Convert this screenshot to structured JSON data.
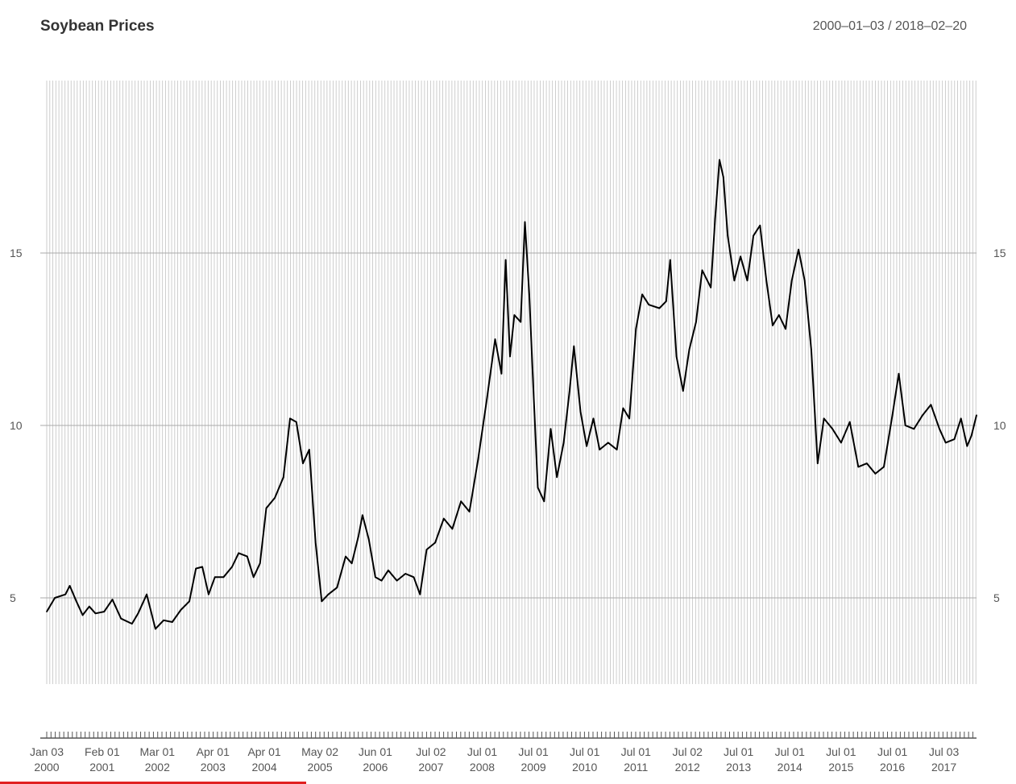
{
  "title": "Soybean Prices",
  "date_range": "2000–01–03 / 2018–02–20",
  "chart_data": {
    "type": "line",
    "title": "Soybean Prices",
    "subtitle": "2000–01–03 / 2018–02–20",
    "xlabel": "",
    "ylabel": "",
    "x_range": [
      "2000-01-03",
      "2018-02-20"
    ],
    "ylim": [
      2.5,
      20
    ],
    "y_ticks": [
      5,
      10,
      15
    ],
    "y_axis_sides": "left and right",
    "grid": "dense vertical, horizontal at y ticks",
    "x_ticks": [
      {
        "date": "2000-01-03",
        "line1": "Jan 03",
        "line2": "2000"
      },
      {
        "date": "2001-02-01",
        "line1": "Feb 01",
        "line2": "2001"
      },
      {
        "date": "2002-03-01",
        "line1": "Mar 01",
        "line2": "2002"
      },
      {
        "date": "2003-04-01",
        "line1": "Apr 01",
        "line2": "2003"
      },
      {
        "date": "2004-04-01",
        "line1": "Apr 01",
        "line2": "2004"
      },
      {
        "date": "2005-05-02",
        "line1": "May 02",
        "line2": "2005"
      },
      {
        "date": "2006-06-01",
        "line1": "Jun 01",
        "line2": "2006"
      },
      {
        "date": "2007-07-02",
        "line1": "Jul 02",
        "line2": "2007"
      },
      {
        "date": "2008-07-01",
        "line1": "Jul 01",
        "line2": "2008"
      },
      {
        "date": "2009-07-01",
        "line1": "Jul 01",
        "line2": "2009"
      },
      {
        "date": "2010-07-01",
        "line1": "Jul 01",
        "line2": "2010"
      },
      {
        "date": "2011-07-01",
        "line1": "Jul 01",
        "line2": "2011"
      },
      {
        "date": "2012-07-02",
        "line1": "Jul 02",
        "line2": "2012"
      },
      {
        "date": "2013-07-01",
        "line1": "Jul 01",
        "line2": "2013"
      },
      {
        "date": "2014-07-01",
        "line1": "Jul 01",
        "line2": "2014"
      },
      {
        "date": "2015-07-01",
        "line1": "Jul 01",
        "line2": "2015"
      },
      {
        "date": "2016-07-01",
        "line1": "Jul 01",
        "line2": "2016"
      },
      {
        "date": "2017-07-03",
        "line1": "Jul 03",
        "line2": "2017"
      }
    ],
    "series": [
      {
        "values": [
          [
            "2000-01-03",
            4.6
          ],
          [
            "2000-03-01",
            5.0
          ],
          [
            "2000-05-15",
            5.1
          ],
          [
            "2000-06-15",
            5.35
          ],
          [
            "2000-08-01",
            4.9
          ],
          [
            "2000-09-15",
            4.5
          ],
          [
            "2000-11-01",
            4.75
          ],
          [
            "2000-12-15",
            4.55
          ],
          [
            "2001-02-15",
            4.6
          ],
          [
            "2001-04-15",
            4.95
          ],
          [
            "2001-06-15",
            4.4
          ],
          [
            "2001-09-01",
            4.25
          ],
          [
            "2001-10-15",
            4.55
          ],
          [
            "2001-12-15",
            5.1
          ],
          [
            "2002-02-15",
            4.1
          ],
          [
            "2002-04-15",
            4.35
          ],
          [
            "2002-06-15",
            4.3
          ],
          [
            "2002-08-15",
            4.65
          ],
          [
            "2002-10-15",
            4.9
          ],
          [
            "2002-12-01",
            5.85
          ],
          [
            "2003-01-15",
            5.9
          ],
          [
            "2003-03-01",
            5.1
          ],
          [
            "2003-04-15",
            5.6
          ],
          [
            "2003-06-15",
            5.6
          ],
          [
            "2003-08-15",
            5.9
          ],
          [
            "2003-10-01",
            6.3
          ],
          [
            "2003-12-01",
            6.2
          ],
          [
            "2004-01-15",
            5.6
          ],
          [
            "2004-03-01",
            6.0
          ],
          [
            "2004-04-15",
            7.6
          ],
          [
            "2004-06-15",
            7.9
          ],
          [
            "2004-08-15",
            8.5
          ],
          [
            "2004-10-01",
            10.2
          ],
          [
            "2004-11-15",
            10.1
          ],
          [
            "2005-01-01",
            8.9
          ],
          [
            "2005-02-15",
            9.3
          ],
          [
            "2005-04-01",
            6.6
          ],
          [
            "2005-05-15",
            4.9
          ],
          [
            "2005-07-01",
            5.1
          ],
          [
            "2005-09-01",
            5.3
          ],
          [
            "2005-11-01",
            6.2
          ],
          [
            "2005-12-15",
            6.0
          ],
          [
            "2006-02-01",
            6.8
          ],
          [
            "2006-03-01",
            7.4
          ],
          [
            "2006-04-15",
            6.7
          ],
          [
            "2006-06-01",
            5.6
          ],
          [
            "2006-07-15",
            5.5
          ],
          [
            "2006-09-01",
            5.8
          ],
          [
            "2006-11-01",
            5.5
          ],
          [
            "2007-01-01",
            5.7
          ],
          [
            "2007-03-01",
            5.6
          ],
          [
            "2007-04-15",
            5.1
          ],
          [
            "2007-06-01",
            6.4
          ],
          [
            "2007-08-01",
            6.6
          ],
          [
            "2007-10-01",
            7.3
          ],
          [
            "2007-12-01",
            7.0
          ],
          [
            "2008-02-01",
            7.8
          ],
          [
            "2008-04-01",
            7.5
          ],
          [
            "2008-06-01",
            9.0
          ],
          [
            "2008-08-01",
            10.7
          ],
          [
            "2008-10-01",
            12.5
          ],
          [
            "2008-11-15",
            11.5
          ],
          [
            "2008-12-15",
            14.8
          ],
          [
            "2009-01-15",
            12.0
          ],
          [
            "2009-02-15",
            13.2
          ],
          [
            "2009-04-01",
            13.0
          ],
          [
            "2009-05-01",
            15.9
          ],
          [
            "2009-06-01",
            13.8
          ],
          [
            "2009-07-01",
            11.0
          ],
          [
            "2009-08-01",
            8.2
          ],
          [
            "2009-09-15",
            7.8
          ],
          [
            "2009-11-01",
            9.9
          ],
          [
            "2009-12-15",
            8.5
          ],
          [
            "2010-02-01",
            9.5
          ],
          [
            "2010-03-15",
            11.0
          ],
          [
            "2010-04-15",
            12.3
          ],
          [
            "2010-06-01",
            10.4
          ],
          [
            "2010-07-15",
            9.4
          ],
          [
            "2010-09-01",
            10.2
          ],
          [
            "2010-10-15",
            9.3
          ],
          [
            "2010-12-15",
            9.5
          ],
          [
            "2011-02-15",
            9.3
          ],
          [
            "2011-04-01",
            10.5
          ],
          [
            "2011-05-15",
            10.2
          ],
          [
            "2011-07-01",
            12.8
          ],
          [
            "2011-08-15",
            13.8
          ],
          [
            "2011-10-01",
            13.5
          ],
          [
            "2011-12-15",
            13.4
          ],
          [
            "2012-02-01",
            13.6
          ],
          [
            "2012-03-01",
            14.8
          ],
          [
            "2012-04-15",
            12.0
          ],
          [
            "2012-06-01",
            11.0
          ],
          [
            "2012-07-15",
            12.2
          ],
          [
            "2012-09-01",
            13.0
          ],
          [
            "2012-10-15",
            14.5
          ],
          [
            "2012-12-15",
            14.0
          ],
          [
            "2013-01-15",
            16.0
          ],
          [
            "2013-02-15",
            17.7
          ],
          [
            "2013-03-15",
            17.2
          ],
          [
            "2013-04-15",
            15.5
          ],
          [
            "2013-06-01",
            14.2
          ],
          [
            "2013-07-15",
            14.9
          ],
          [
            "2013-09-01",
            14.2
          ],
          [
            "2013-10-15",
            15.5
          ],
          [
            "2013-12-01",
            15.8
          ],
          [
            "2014-01-15",
            14.2
          ],
          [
            "2014-03-01",
            12.9
          ],
          [
            "2014-04-15",
            13.2
          ],
          [
            "2014-06-01",
            12.8
          ],
          [
            "2014-07-15",
            14.2
          ],
          [
            "2014-09-01",
            15.1
          ],
          [
            "2014-10-15",
            14.2
          ],
          [
            "2014-12-01",
            12.2
          ],
          [
            "2015-01-15",
            8.9
          ],
          [
            "2015-03-01",
            10.2
          ],
          [
            "2015-05-01",
            9.9
          ],
          [
            "2015-07-01",
            9.5
          ],
          [
            "2015-09-01",
            10.1
          ],
          [
            "2015-11-01",
            8.8
          ],
          [
            "2016-01-01",
            8.9
          ],
          [
            "2016-03-01",
            8.6
          ],
          [
            "2016-05-01",
            8.8
          ],
          [
            "2016-07-01",
            10.3
          ],
          [
            "2016-08-15",
            11.5
          ],
          [
            "2016-10-01",
            10.0
          ],
          [
            "2016-12-01",
            9.9
          ],
          [
            "2017-02-01",
            10.3
          ],
          [
            "2017-04-01",
            10.6
          ],
          [
            "2017-06-01",
            9.9
          ],
          [
            "2017-07-15",
            9.5
          ],
          [
            "2017-09-15",
            9.6
          ],
          [
            "2017-11-01",
            10.2
          ],
          [
            "2017-12-15",
            9.4
          ],
          [
            "2018-01-15",
            9.7
          ],
          [
            "2018-02-20",
            10.3
          ]
        ]
      }
    ]
  }
}
